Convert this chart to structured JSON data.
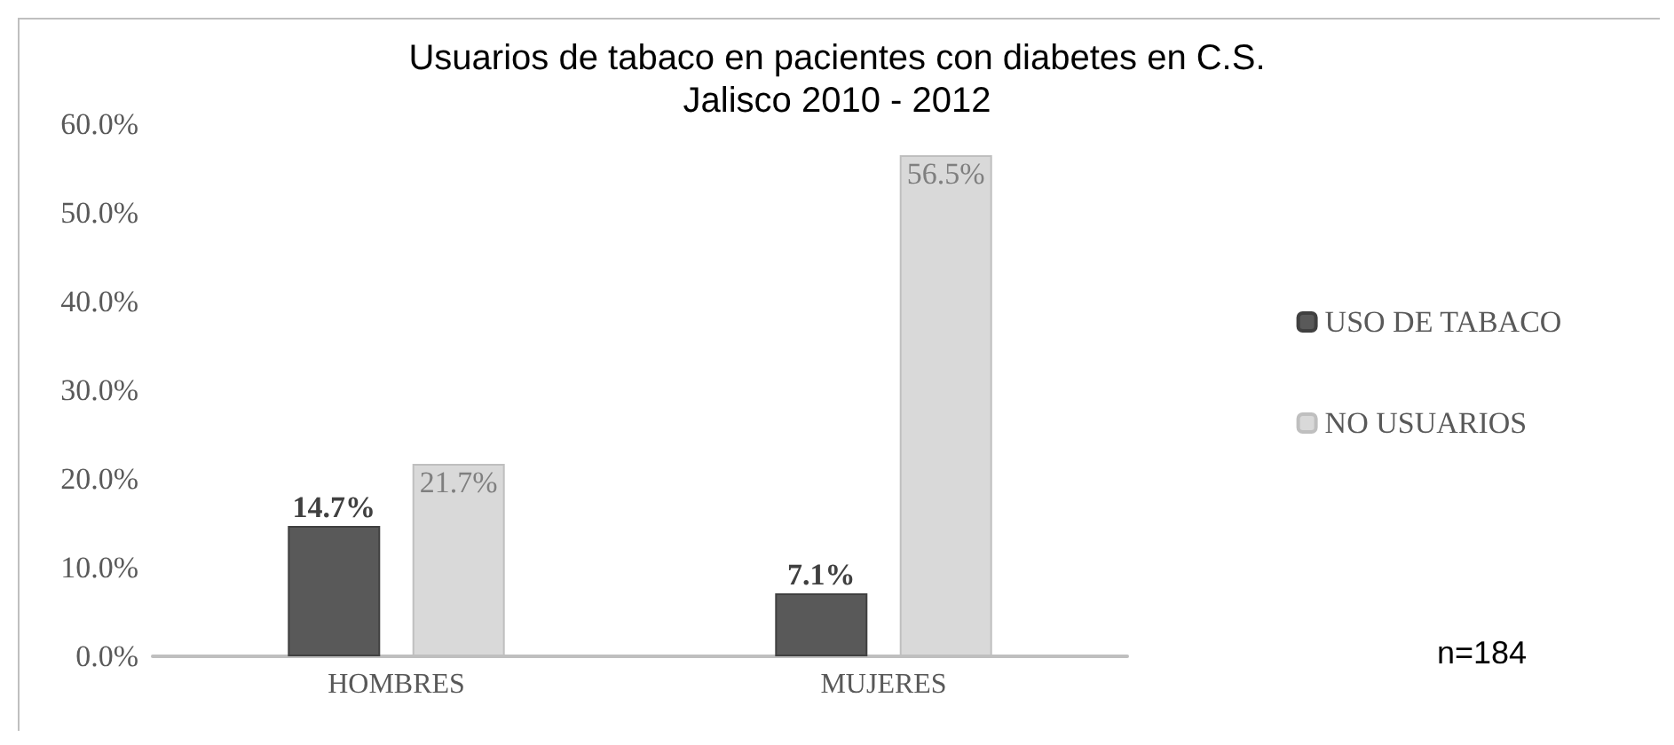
{
  "chart_data": {
    "type": "bar",
    "title": "Usuarios de tabaco en pacientes con diabetes en C.S.\nJalisco 2010 - 2012",
    "categories": [
      "HOMBRES",
      "MUJERES"
    ],
    "series": [
      {
        "name": "USO DE TABACO",
        "color": "#595959",
        "values": [
          14.7,
          7.1
        ],
        "value_labels": [
          "14.7%",
          "7.1%"
        ]
      },
      {
        "name": "NO USUARIOS",
        "color": "#d9d9d9",
        "values": [
          21.7,
          56.5
        ],
        "value_labels": [
          "21.7%",
          "56.5%"
        ]
      }
    ],
    "ylim": [
      0,
      60
    ],
    "yticks": [
      {
        "value": 0,
        "label": "0.0%"
      },
      {
        "value": 10,
        "label": "10.0%"
      },
      {
        "value": 20,
        "label": "20.0%"
      },
      {
        "value": 30,
        "label": "30.0%"
      },
      {
        "value": 40,
        "label": "40.0%"
      },
      {
        "value": 50,
        "label": "50.0%"
      },
      {
        "value": 60,
        "label": "60.0%"
      }
    ],
    "grid": false,
    "legend": "right",
    "annotations": [
      "n=184"
    ]
  }
}
